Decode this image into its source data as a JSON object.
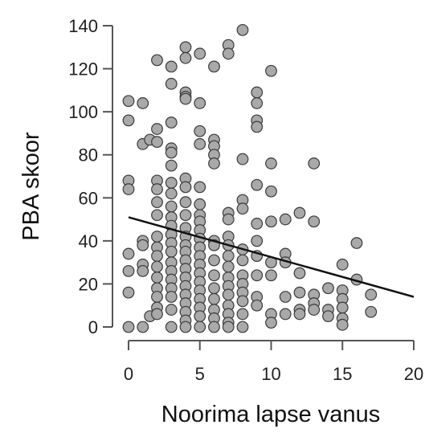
{
  "chart_data": {
    "type": "scatter",
    "xlabel": "Noorima lapse vanus",
    "ylabel": "PBA skoor",
    "xlim": [
      0,
      20
    ],
    "ylim": [
      0,
      140
    ],
    "xticks": [
      "0",
      "5",
      "10",
      "15",
      "20"
    ],
    "yticks": [
      "0",
      "20",
      "40",
      "60",
      "80",
      "100",
      "120",
      "140"
    ],
    "grid": false,
    "trend_line": {
      "x": [
        0,
        20
      ],
      "y": [
        51,
        14
      ]
    },
    "colors": {
      "point_fill": "#a9a9a9",
      "point_stroke": "#3a3a3a",
      "line": "#111111",
      "axis": "#555555"
    },
    "points": [
      [
        0,
        105
      ],
      [
        0,
        96
      ],
      [
        0,
        68
      ],
      [
        0,
        64
      ],
      [
        0,
        34
      ],
      [
        0,
        26
      ],
      [
        0,
        16
      ],
      [
        0,
        0
      ],
      [
        1,
        104
      ],
      [
        1,
        85
      ],
      [
        1,
        40
      ],
      [
        1,
        38
      ],
      [
        1,
        29
      ],
      [
        1,
        26
      ],
      [
        1,
        0
      ],
      [
        1.5,
        87
      ],
      [
        1.5,
        5
      ],
      [
        2,
        124
      ],
      [
        2,
        92
      ],
      [
        2,
        86
      ],
      [
        2,
        68
      ],
      [
        2,
        64
      ],
      [
        2,
        58
      ],
      [
        2,
        52
      ],
      [
        2,
        42
      ],
      [
        2,
        37
      ],
      [
        2,
        33
      ],
      [
        2,
        28
      ],
      [
        2,
        23
      ],
      [
        2,
        18
      ],
      [
        2,
        14
      ],
      [
        2,
        9
      ],
      [
        2,
        6
      ],
      [
        3,
        121
      ],
      [
        3,
        113
      ],
      [
        3,
        95
      ],
      [
        3,
        83
      ],
      [
        3,
        81
      ],
      [
        3,
        75
      ],
      [
        3,
        67
      ],
      [
        3,
        62
      ],
      [
        3,
        56
      ],
      [
        3,
        51
      ],
      [
        3,
        47
      ],
      [
        3,
        43
      ],
      [
        3,
        39
      ],
      [
        3,
        35
      ],
      [
        3,
        30
      ],
      [
        3,
        26
      ],
      [
        3,
        22
      ],
      [
        3,
        18
      ],
      [
        3,
        14
      ],
      [
        3,
        8
      ],
      [
        3,
        0
      ],
      [
        4,
        130
      ],
      [
        4,
        125
      ],
      [
        4,
        109
      ],
      [
        4,
        107
      ],
      [
        4,
        106
      ],
      [
        4,
        69
      ],
      [
        4,
        65
      ],
      [
        4,
        58
      ],
      [
        4,
        52
      ],
      [
        4,
        46
      ],
      [
        4,
        42
      ],
      [
        4,
        38
      ],
      [
        4,
        35
      ],
      [
        4,
        31
      ],
      [
        4,
        27
      ],
      [
        4,
        23
      ],
      [
        4,
        19
      ],
      [
        4,
        15
      ],
      [
        4,
        11
      ],
      [
        4,
        7
      ],
      [
        4,
        3
      ],
      [
        4,
        0
      ],
      [
        5,
        127
      ],
      [
        5,
        104
      ],
      [
        5,
        91
      ],
      [
        5,
        85
      ],
      [
        5,
        65
      ],
      [
        5,
        57
      ],
      [
        5,
        52
      ],
      [
        5,
        49
      ],
      [
        5,
        45
      ],
      [
        5,
        41
      ],
      [
        5,
        37
      ],
      [
        5,
        33
      ],
      [
        5,
        29
      ],
      [
        5,
        25
      ],
      [
        5,
        21
      ],
      [
        5,
        17
      ],
      [
        5,
        13
      ],
      [
        5,
        9
      ],
      [
        5,
        5
      ],
      [
        5,
        0
      ],
      [
        6,
        121
      ],
      [
        6,
        87
      ],
      [
        6,
        84
      ],
      [
        6,
        80
      ],
      [
        6,
        76
      ],
      [
        6,
        40
      ],
      [
        6,
        38
      ],
      [
        6,
        31
      ],
      [
        6,
        24
      ],
      [
        6,
        18
      ],
      [
        6,
        13
      ],
      [
        6,
        8
      ],
      [
        6,
        4
      ],
      [
        6,
        0
      ],
      [
        7,
        131
      ],
      [
        7,
        127
      ],
      [
        7,
        53
      ],
      [
        7,
        50
      ],
      [
        7,
        42
      ],
      [
        7,
        38
      ],
      [
        7,
        33
      ],
      [
        7,
        28
      ],
      [
        7,
        23
      ],
      [
        7,
        19
      ],
      [
        7,
        15
      ],
      [
        7,
        10
      ],
      [
        7,
        6
      ],
      [
        7,
        2
      ],
      [
        7,
        0
      ],
      [
        8,
        138
      ],
      [
        8,
        78
      ],
      [
        8,
        59
      ],
      [
        8,
        55
      ],
      [
        8,
        36
      ],
      [
        8,
        31
      ],
      [
        8,
        24
      ],
      [
        8,
        20
      ],
      [
        8,
        16
      ],
      [
        8,
        12
      ],
      [
        8,
        6
      ],
      [
        8,
        0
      ],
      [
        9,
        109
      ],
      [
        9,
        104
      ],
      [
        9,
        96
      ],
      [
        9,
        93
      ],
      [
        9,
        66
      ],
      [
        9,
        48
      ],
      [
        9,
        40
      ],
      [
        9,
        33
      ],
      [
        9,
        24
      ],
      [
        9,
        14
      ],
      [
        9,
        10
      ],
      [
        10,
        119
      ],
      [
        10,
        76
      ],
      [
        10,
        63
      ],
      [
        10,
        49
      ],
      [
        10,
        30
      ],
      [
        10,
        24
      ],
      [
        10,
        6
      ],
      [
        10,
        2
      ],
      [
        11,
        50
      ],
      [
        11,
        34
      ],
      [
        11,
        30
      ],
      [
        11,
        14
      ],
      [
        11,
        6
      ],
      [
        12,
        53
      ],
      [
        12,
        25
      ],
      [
        12,
        16
      ],
      [
        12,
        8
      ],
      [
        12,
        6
      ],
      [
        13,
        76
      ],
      [
        13,
        49
      ],
      [
        13,
        15
      ],
      [
        13,
        11
      ],
      [
        13,
        8
      ],
      [
        14,
        18
      ],
      [
        14,
        8
      ],
      [
        14,
        5
      ],
      [
        15,
        29
      ],
      [
        15,
        17
      ],
      [
        15,
        13
      ],
      [
        15,
        9
      ],
      [
        15,
        4
      ],
      [
        15,
        1
      ],
      [
        16,
        39
      ],
      [
        16,
        22
      ],
      [
        17,
        15
      ],
      [
        17,
        7
      ]
    ]
  }
}
